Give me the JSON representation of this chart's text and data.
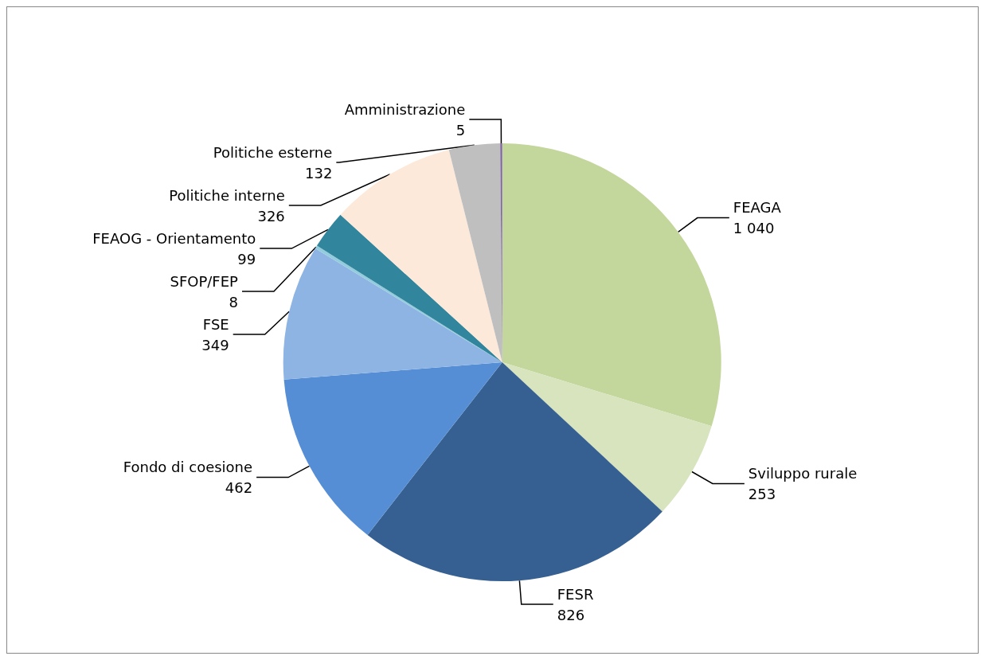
{
  "chart_data": {
    "type": "pie",
    "categories": [
      "FEAGA",
      "Sviluppo rurale",
      "FESR",
      "Fondo di coesione",
      "FSE",
      "SFOP/FEP",
      "FEAOG - Orientamento",
      "Politiche interne",
      "Politiche esterne",
      "Amministrazione"
    ],
    "values": [
      1040,
      253,
      826,
      462,
      349,
      8,
      99,
      326,
      132,
      5
    ],
    "value_labels": [
      "1 040",
      "253",
      "826",
      "462",
      "349",
      "8",
      "99",
      "326",
      "132",
      "5"
    ],
    "colors": [
      "#c3d69b",
      "#d7e4bd",
      "#376092",
      "#558ed5",
      "#8eb4e3",
      "#93cddd",
      "#31859c",
      "#fde9d9",
      "#bfbfbf",
      "#8064a2"
    ],
    "legend": false
  }
}
